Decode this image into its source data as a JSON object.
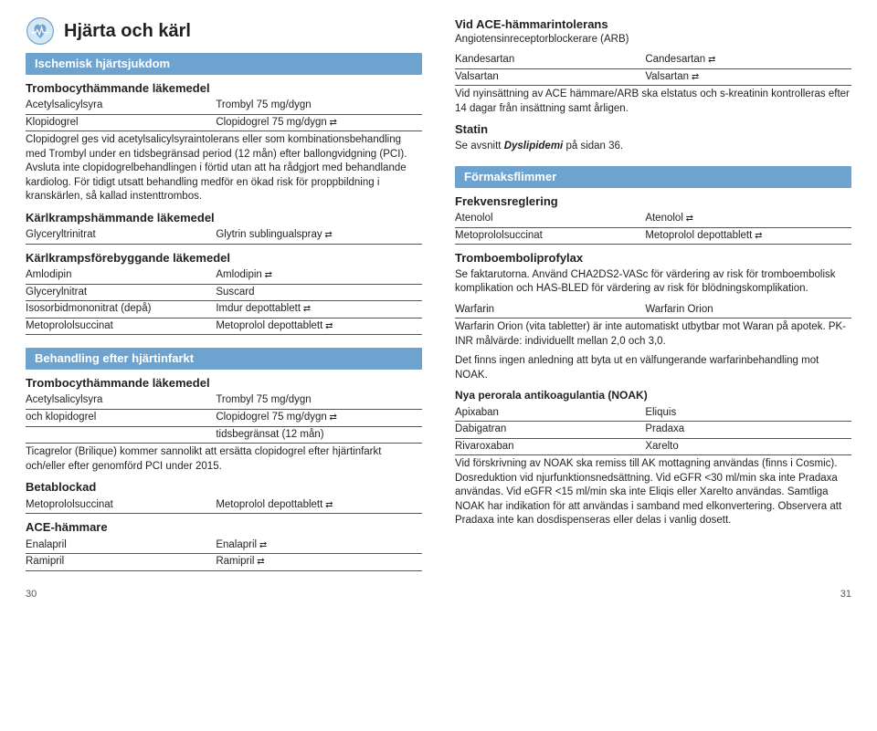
{
  "left": {
    "title": "Hjärta och kärl",
    "sec1": {
      "heading": "Ischemisk hjärtsjukdom",
      "sub1": "Trombocythämmande läkemedel",
      "rows1": [
        {
          "a": "Acetylsalicylsyra",
          "b": "Trombyl 75 mg/dygn"
        },
        {
          "a": "Klopidogrel",
          "b": "Clopidogrel 75 mg/dygn",
          "sw": true
        }
      ],
      "para1": "Clopidogrel ges vid acetylsalicylsyraintolerans eller som kombinations­behandling med Trombyl under en tidsbegränsad period (12 mån) efter ballongvidgning (PCI). Avsluta inte clopidogrelbehandlingen i förtid utan att ha rådgjort med behandlande kardiolog. För tidigt utsatt behandling medför en ökad risk för proppbildning i kranskärlen, så kallad instent­trombos.",
      "sub2": "Kärlkrampshämmande läkemedel",
      "rows2": [
        {
          "a": "Glyceryltrinitrat",
          "b": "Glytrin sublingualspray",
          "sw": true
        }
      ],
      "sub3": "Kärlkrampsförebyggande läkemedel",
      "rows3": [
        {
          "a": "Amlodipin",
          "b": "Amlodipin",
          "sw": true
        },
        {
          "a": "Glycerylnitrat",
          "b": "Suscard"
        },
        {
          "a": "Isosorbidmononitrat (depå)",
          "b": "Imdur depottablett",
          "sw": true
        },
        {
          "a": "Metoprololsuccinat",
          "b": "Metoprolol depottablett",
          "sw": true
        }
      ]
    },
    "sec2": {
      "heading": "Behandling efter hjärtinfarkt",
      "sub1": "Trombocythämmande läkemedel",
      "rows1": [
        {
          "a": "Acetylsalicylsyra",
          "b": "Trombyl 75 mg/dygn"
        },
        {
          "a": "och klopidogrel",
          "b": "Clopidogrel 75 mg/dygn",
          "sw": true
        },
        {
          "a": "",
          "b": "tidsbegränsat (12 mån)"
        }
      ],
      "para1": "Ticagrelor (Brilique) kommer sannolikt att ersätta clopidogrel efter hjärt­infarkt och/eller efter genomförd PCI under 2015.",
      "sub2": "Betablockad",
      "rows2": [
        {
          "a": "Metoprololsuccinat",
          "b": "Metoprolol depottablett",
          "sw": true
        }
      ],
      "sub3": "ACE-hämmare",
      "rows3": [
        {
          "a": "Enalapril",
          "b": "Enalapril",
          "sw": true
        },
        {
          "a": "Ramipril",
          "b": "Ramipril",
          "sw": true
        }
      ]
    },
    "pagenum": "30"
  },
  "right": {
    "sub1": "Vid ACE-hämmarintolerans",
    "line1": "Angiotensinreceptorblockerare (ARB)",
    "rows1": [
      {
        "a": "Kandesartan",
        "b": "Candesartan",
        "sw": true
      },
      {
        "a": "Valsartan",
        "b": "Valsartan",
        "sw": true
      }
    ],
    "para1": "Vid nyinsättning av ACE hämmare/ARB ska elstatus och s-kreatinin kon­trolleras efter 14 dagar från insättning samt årligen.",
    "sub2": "Statin",
    "para2a": "Se avsnitt ",
    "para2b": "Dyslipidemi",
    "para2c": " på sidan 36.",
    "sec3": {
      "heading": "Förmaksflimmer",
      "sub1": "Frekvensreglering",
      "rows1": [
        {
          "a": "Atenolol",
          "b": "Atenolol",
          "sw": true
        },
        {
          "a": "Metoprololsuccinat",
          "b": "Metoprolol depottablett",
          "sw": true
        }
      ],
      "sub2": "Tromboemboliprofylax",
      "para1": "Se faktarutorna. Använd CHA2DS2-VASc för värdering av risk för trombo­embolisk komplikation och HAS-BLED för värdering av risk för blödnings­komplikation.",
      "rows2": [
        {
          "a": "Warfarin",
          "b": "Warfarin Orion"
        }
      ],
      "para2": "Warfarin Orion (vita tabletter) är inte automatiskt utbytbar mot Waran på apotek. PK-INR målvärde: individuellt mellan 2,0 och 3,0.",
      "para3": "Det finns ingen anledning att byta ut en välfungerande warfarinbehand­ling mot NOAK.",
      "sub3": "Nya perorala antikoagulantia (NOAK)",
      "rows3": [
        {
          "a": "Apixaban",
          "b": "Eliquis"
        },
        {
          "a": "Dabigatran",
          "b": "Pradaxa"
        },
        {
          "a": "Rivaroxaban",
          "b": "Xarelto"
        }
      ],
      "para4": "Vid förskrivning av NOAK ska remiss till AK mottagning användas (finns i Cosmic). Dosreduktion vid njurfunktionsnedsättning. Vid eGFR <30 ml/min ska inte Pradaxa användas. Vid eGFR <15 ml/min ska inte Eliqis eller Xarelto användas. Samtliga NOAK har indikation för att användas i samband med elkonvertering. Observera att Pradaxa inte kan dosdispenseras eller delas i vanlig dosett."
    },
    "pagenum": "31"
  }
}
